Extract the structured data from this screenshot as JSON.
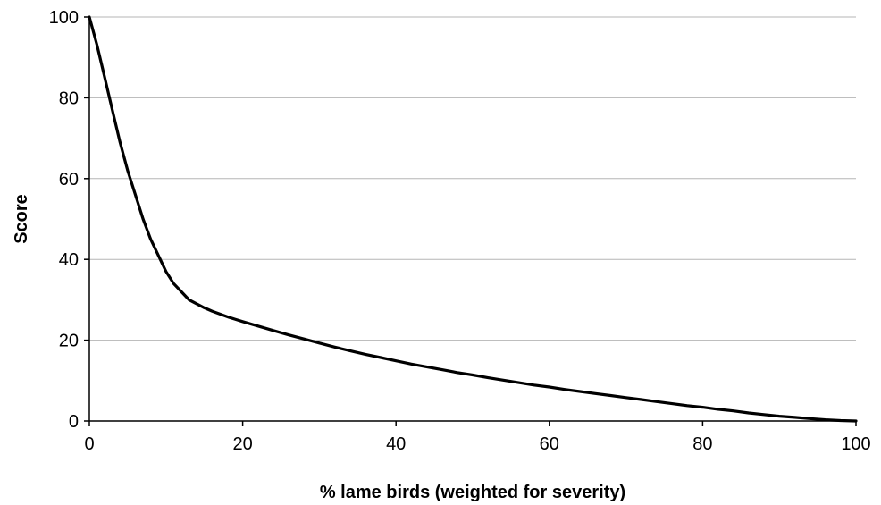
{
  "chart_data": {
    "type": "line",
    "xlabel": "% lame birds (weighted for severity)",
    "ylabel": "Score",
    "xlim": [
      0,
      100
    ],
    "ylim": [
      0,
      100
    ],
    "x_ticks": [
      0,
      20,
      40,
      60,
      80,
      100
    ],
    "y_ticks": [
      0,
      20,
      40,
      60,
      80,
      100
    ],
    "grid": {
      "horizontal": true,
      "vertical": false
    },
    "legend": "none",
    "series": [
      {
        "color": "#000000",
        "x": [
          0,
          1,
          2,
          3,
          4,
          5,
          6,
          7,
          8,
          9,
          10,
          11,
          12,
          13,
          14,
          15,
          16,
          17,
          18,
          19,
          20,
          22,
          24,
          26,
          28,
          30,
          32,
          34,
          36,
          38,
          40,
          42,
          44,
          46,
          48,
          50,
          52,
          54,
          56,
          58,
          60,
          62,
          64,
          66,
          68,
          70,
          72,
          74,
          76,
          78,
          80,
          82,
          84,
          86,
          88,
          90,
          92,
          94,
          96,
          98,
          100
        ],
        "y": [
          100,
          93,
          85,
          77,
          69,
          62,
          56,
          50,
          45,
          41,
          37,
          34,
          32,
          30,
          29,
          28,
          27.2,
          26.5,
          25.8,
          25.2,
          24.6,
          23.5,
          22.4,
          21.3,
          20.3,
          19.3,
          18.3,
          17.4,
          16.5,
          15.7,
          14.9,
          14.1,
          13.4,
          12.7,
          12.0,
          11.4,
          10.7,
          10.1,
          9.5,
          8.9,
          8.4,
          7.8,
          7.3,
          6.8,
          6.3,
          5.8,
          5.3,
          4.8,
          4.3,
          3.8,
          3.4,
          2.9,
          2.5,
          2.0,
          1.6,
          1.2,
          0.9,
          0.6,
          0.3,
          0.1,
          0
        ]
      }
    ]
  }
}
